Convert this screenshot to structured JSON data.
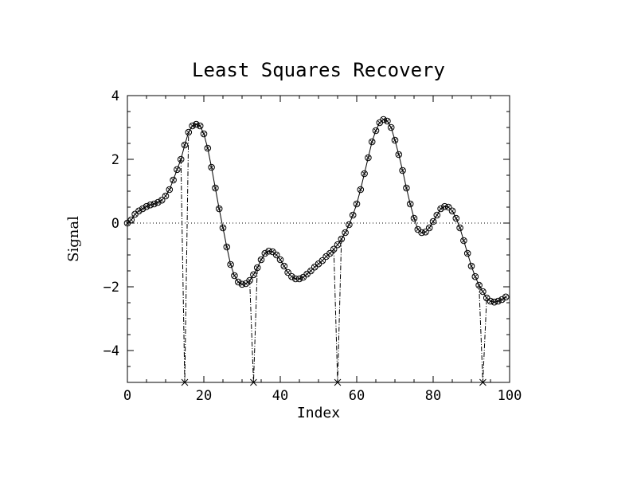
{
  "chart_data": {
    "type": "line",
    "title": "Least Squares Recovery",
    "xlabel": "Index",
    "ylabel": "Signal",
    "xlim": [
      0,
      100
    ],
    "ylim": [
      -5,
      4
    ],
    "xticks": [
      0,
      20,
      40,
      60,
      80,
      100
    ],
    "yticks": [
      -4,
      -2,
      0,
      2,
      4
    ],
    "grid": false,
    "zero_line": 0,
    "series": [
      {
        "style": "solid-line-with-circles",
        "x": [
          0,
          1,
          2,
          3,
          4,
          5,
          6,
          7,
          8,
          9,
          10,
          11,
          12,
          13,
          14,
          15,
          16,
          17,
          18,
          19,
          20,
          21,
          22,
          23,
          24,
          25,
          26,
          27,
          28,
          29,
          30,
          31,
          32,
          33,
          34,
          35,
          36,
          37,
          38,
          39,
          40,
          41,
          42,
          43,
          44,
          45,
          46,
          47,
          48,
          49,
          50,
          51,
          52,
          53,
          54,
          55,
          56,
          57,
          58,
          59,
          60,
          61,
          62,
          63,
          64,
          65,
          66,
          67,
          68,
          69,
          70,
          71,
          72,
          73,
          74,
          75,
          76,
          77,
          78,
          79,
          80,
          81,
          82,
          83,
          84,
          85,
          86,
          87,
          88,
          89,
          90,
          91,
          92,
          93,
          94,
          95,
          96,
          97,
          98,
          99
        ],
        "y": [
          0.0,
          0.1,
          0.28,
          0.38,
          0.45,
          0.52,
          0.57,
          0.6,
          0.65,
          0.72,
          0.85,
          1.05,
          1.35,
          1.68,
          2.0,
          2.45,
          2.85,
          3.05,
          3.1,
          3.05,
          2.8,
          2.35,
          1.75,
          1.1,
          0.45,
          -0.15,
          -0.75,
          -1.3,
          -1.65,
          -1.85,
          -1.92,
          -1.9,
          -1.8,
          -1.62,
          -1.4,
          -1.15,
          -0.95,
          -0.88,
          -0.9,
          -1.0,
          -1.15,
          -1.35,
          -1.55,
          -1.68,
          -1.75,
          -1.75,
          -1.7,
          -1.6,
          -1.5,
          -1.38,
          -1.28,
          -1.18,
          -1.05,
          -0.95,
          -0.82,
          -0.68,
          -0.5,
          -0.3,
          -0.05,
          0.25,
          0.6,
          1.05,
          1.55,
          2.05,
          2.55,
          2.9,
          3.15,
          3.25,
          3.2,
          3.0,
          2.6,
          2.15,
          1.65,
          1.1,
          0.6,
          0.15,
          -0.2,
          -0.3,
          -0.28,
          -0.15,
          0.05,
          0.25,
          0.45,
          0.52,
          0.5,
          0.38,
          0.15,
          -0.15,
          -0.55,
          -0.95,
          -1.35,
          -1.68,
          -1.95,
          -2.15,
          -2.35,
          -2.45,
          -2.48,
          -2.45,
          -2.4,
          -2.32
        ]
      },
      {
        "style": "dash-dot-with-x",
        "x": [
          15,
          33,
          55,
          93
        ],
        "y": [
          -5,
          -5,
          -5,
          -5
        ],
        "connect_to_curve_x": [
          14,
          16,
          32,
          34,
          54,
          56,
          92,
          94
        ]
      }
    ]
  }
}
